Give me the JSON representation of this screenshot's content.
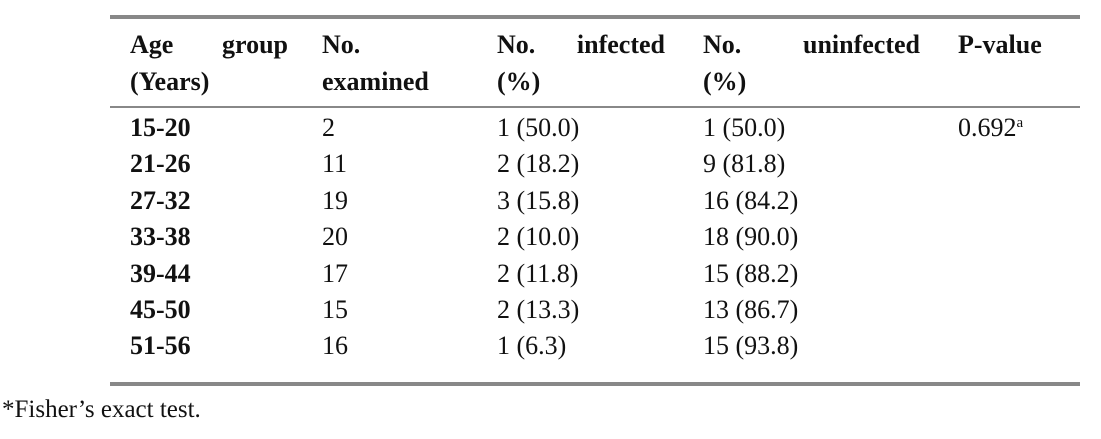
{
  "table": {
    "header": [
      [
        "Age group",
        "(Years)"
      ],
      [
        "No.",
        "examined"
      ],
      [
        "No. infected",
        "(%)"
      ],
      [
        "No. uninfected",
        "(%)"
      ],
      [
        "P-value"
      ]
    ],
    "rows": [
      [
        "15-20",
        "2",
        "1 (50.0)",
        "1 (50.0)",
        {
          "text": "0.692",
          "sup": "a"
        }
      ],
      [
        "21-26",
        "11",
        "2 (18.2)",
        "9 (81.8)"
      ],
      [
        "27-32",
        "19",
        "3 (15.8)",
        "16 (84.2)"
      ],
      [
        "33-38",
        "20",
        "2 (10.0)",
        "18 (90.0)"
      ],
      [
        "39-44",
        "17",
        "2 (11.8)",
        "15 (88.2)"
      ],
      [
        "45-50",
        "15",
        "2 (13.3)",
        "13 (86.7)"
      ],
      [
        "51-56",
        "16",
        "1 (6.3)",
        "15 (93.8)"
      ]
    ]
  },
  "footnote": "*Fisher’s exact test."
}
